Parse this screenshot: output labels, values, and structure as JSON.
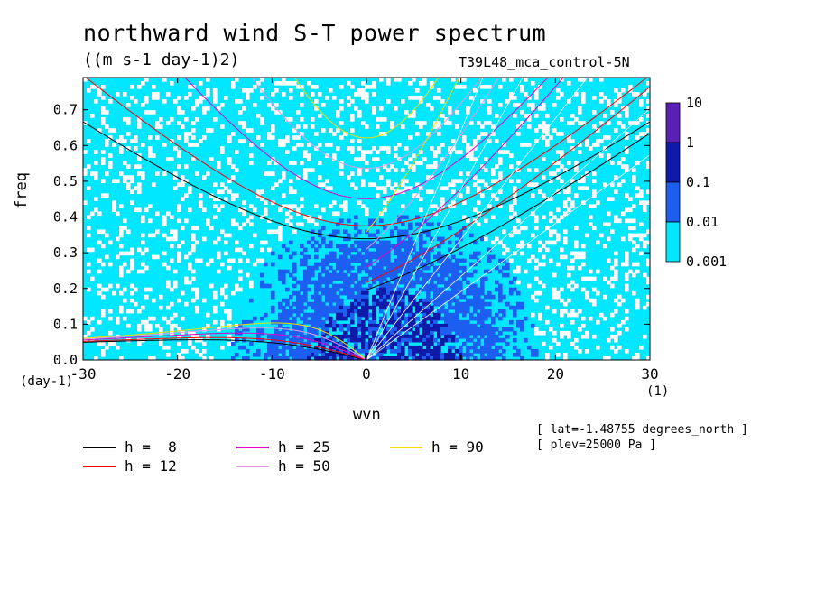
{
  "title": "northward wind S-T power spectrum",
  "units": "((m s-1 day-1)2)",
  "run_label": "T39L48_mca_control-5N",
  "meta": [
    "[ lat=-1.48755 degrees_north ]",
    "[ plev=25000 Pa ]"
  ],
  "chart_data": {
    "type": "heatmap",
    "title": "northward wind S-T power spectrum",
    "xlabel": "wvn",
    "ylabel": "freq",
    "x_unit_label": "(1)",
    "y_unit_label": "(day-1)",
    "xlim": [
      -30,
      30
    ],
    "ylim": [
      0,
      0.79
    ],
    "xticks": [
      "-30",
      "-20",
      "-10",
      "0",
      "10",
      "20",
      "30"
    ],
    "yticks": [
      "0.0",
      "0.1",
      "0.2",
      "0.3",
      "0.4",
      "0.5",
      "0.6",
      "0.7"
    ],
    "colorbar": {
      "levels": [
        "10",
        "1",
        "0.1",
        "0.01",
        "0.001"
      ],
      "colors": [
        "#5a1fb4",
        "#0f1ba8",
        "#1c5ef0",
        "#00e7ff"
      ]
    },
    "background_colors": {
      "none": "#ffffff",
      "low": "#00e7ff",
      "mid": "#1c5ef0",
      "high": "#0f1ba8"
    },
    "dispersion_curves": [
      {
        "label": "h =  8",
        "h": 8,
        "color": "#000000"
      },
      {
        "label": "h = 12",
        "h": 12,
        "color": "#ff0000"
      },
      {
        "label": "h = 25",
        "h": 25,
        "color": "#e600c8"
      },
      {
        "label": "h = 50",
        "h": 50,
        "color": "#e49be4"
      },
      {
        "label": "h = 90",
        "h": 90,
        "color": "#f0e000"
      }
    ],
    "kelvin_line_color": "#ffffff",
    "legend_placement": "bottom-left"
  }
}
